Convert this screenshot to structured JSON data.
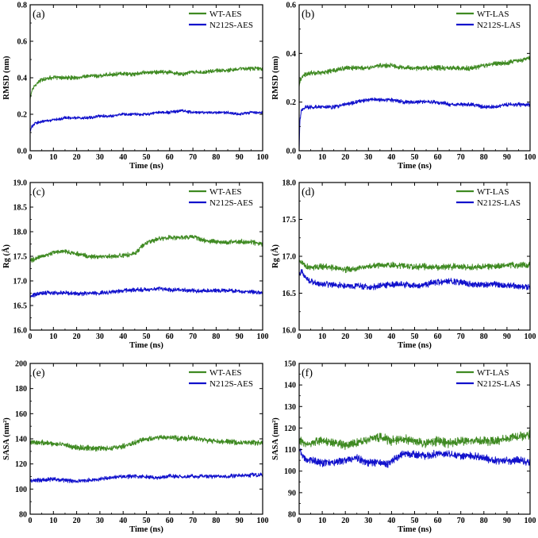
{
  "figure": {
    "series_names": [
      "WT",
      "N212S"
    ],
    "colors": {
      "WT": "#3f8a22",
      "N212S": "#1111cc"
    }
  },
  "chart_data": [
    {
      "type": "line",
      "panel": "(a)",
      "xlabel": "Time (ns)",
      "ylabel": "RMSD (nm)",
      "xlim": [
        0,
        100
      ],
      "ylim": [
        0.0,
        0.8
      ],
      "xticks": [
        0,
        10,
        20,
        30,
        40,
        50,
        60,
        70,
        80,
        90,
        100
      ],
      "yticks": [
        0.0,
        0.2,
        0.4,
        0.6,
        0.8
      ],
      "ytick_labels": [
        "0.0",
        "0.2",
        "0.4",
        "0.6",
        "0.8"
      ],
      "legend": "top-right",
      "series": [
        {
          "name": "WT-AES",
          "color": "#3f8a22",
          "noise": 0.008,
          "x": [
            0,
            0.5,
            2,
            5,
            8,
            10,
            15,
            20,
            25,
            30,
            35,
            40,
            45,
            50,
            55,
            60,
            65,
            70,
            75,
            80,
            85,
            90,
            95,
            100
          ],
          "y": [
            0.28,
            0.32,
            0.36,
            0.39,
            0.4,
            0.4,
            0.4,
            0.4,
            0.41,
            0.41,
            0.42,
            0.42,
            0.42,
            0.43,
            0.43,
            0.43,
            0.42,
            0.43,
            0.43,
            0.44,
            0.44,
            0.45,
            0.45,
            0.45
          ]
        },
        {
          "name": "N212S-AES",
          "color": "#1111cc",
          "noise": 0.006,
          "x": [
            0,
            0.5,
            2,
            5,
            10,
            15,
            20,
            25,
            30,
            35,
            40,
            45,
            50,
            55,
            60,
            65,
            70,
            75,
            80,
            85,
            90,
            95,
            100
          ],
          "y": [
            0.1,
            0.13,
            0.15,
            0.16,
            0.17,
            0.18,
            0.18,
            0.18,
            0.19,
            0.19,
            0.2,
            0.2,
            0.2,
            0.21,
            0.21,
            0.22,
            0.21,
            0.21,
            0.21,
            0.21,
            0.2,
            0.21,
            0.21
          ]
        }
      ]
    },
    {
      "type": "line",
      "panel": "(b)",
      "xlabel": "Time (ns)",
      "ylabel": "RMSD (nm)",
      "xlim": [
        0,
        100
      ],
      "ylim": [
        0.0,
        0.6
      ],
      "xticks": [
        0,
        10,
        20,
        30,
        40,
        50,
        60,
        70,
        80,
        90,
        100
      ],
      "yticks": [
        0.0,
        0.2,
        0.4,
        0.6
      ],
      "ytick_labels": [
        "0.0",
        "0.2",
        "0.4",
        "0.6"
      ],
      "legend": "top-right",
      "series": [
        {
          "name": "WT-LAS",
          "color": "#3f8a22",
          "noise": 0.007,
          "x": [
            0,
            0.5,
            2,
            5,
            10,
            15,
            20,
            25,
            30,
            35,
            40,
            45,
            50,
            55,
            60,
            65,
            70,
            75,
            80,
            85,
            90,
            95,
            100
          ],
          "y": [
            0.27,
            0.29,
            0.31,
            0.32,
            0.32,
            0.33,
            0.34,
            0.34,
            0.34,
            0.35,
            0.35,
            0.34,
            0.34,
            0.34,
            0.34,
            0.34,
            0.34,
            0.34,
            0.35,
            0.36,
            0.36,
            0.37,
            0.38
          ]
        },
        {
          "name": "N212S-LAS",
          "color": "#1111cc",
          "noise": 0.006,
          "x": [
            0,
            0.3,
            1,
            3,
            5,
            10,
            15,
            20,
            25,
            30,
            35,
            40,
            45,
            50,
            55,
            60,
            65,
            70,
            75,
            80,
            85,
            90,
            95,
            100
          ],
          "y": [
            0.0,
            0.12,
            0.17,
            0.18,
            0.18,
            0.18,
            0.18,
            0.19,
            0.2,
            0.21,
            0.21,
            0.21,
            0.2,
            0.2,
            0.2,
            0.2,
            0.19,
            0.19,
            0.19,
            0.18,
            0.18,
            0.19,
            0.19,
            0.19
          ]
        }
      ]
    },
    {
      "type": "line",
      "panel": "(c)",
      "xlabel": "Time (ns)",
      "ylabel": "Rg (Å)",
      "xlim": [
        0,
        100
      ],
      "ylim": [
        16.0,
        19.0
      ],
      "xticks": [
        0,
        10,
        20,
        30,
        40,
        50,
        60,
        70,
        80,
        90,
        100
      ],
      "yticks": [
        16.0,
        16.5,
        17.0,
        17.5,
        18.0,
        18.5,
        19.0
      ],
      "ytick_labels": [
        "16.0",
        "16.5",
        "17.0",
        "17.5",
        "18.0",
        "18.5",
        "19.0"
      ],
      "legend": "top-right",
      "series": [
        {
          "name": "WT-AES",
          "color": "#3f8a22",
          "noise": 0.035,
          "x": [
            0,
            2,
            5,
            10,
            15,
            20,
            25,
            30,
            35,
            40,
            45,
            48,
            50,
            55,
            60,
            65,
            70,
            75,
            80,
            85,
            90,
            95,
            100
          ],
          "y": [
            17.4,
            17.45,
            17.5,
            17.58,
            17.6,
            17.55,
            17.5,
            17.48,
            17.5,
            17.52,
            17.55,
            17.7,
            17.78,
            17.85,
            17.88,
            17.88,
            17.9,
            17.82,
            17.8,
            17.78,
            17.8,
            17.78,
            17.75
          ]
        },
        {
          "name": "N212S-AES",
          "color": "#1111cc",
          "noise": 0.03,
          "x": [
            0,
            2,
            5,
            10,
            15,
            20,
            25,
            30,
            35,
            40,
            45,
            50,
            55,
            60,
            65,
            70,
            75,
            80,
            85,
            90,
            95,
            100
          ],
          "y": [
            16.68,
            16.72,
            16.75,
            16.76,
            16.76,
            16.74,
            16.75,
            16.75,
            16.78,
            16.8,
            16.82,
            16.82,
            16.84,
            16.82,
            16.82,
            16.8,
            16.8,
            16.8,
            16.8,
            16.78,
            16.78,
            16.76
          ]
        }
      ]
    },
    {
      "type": "line",
      "panel": "(d)",
      "xlabel": "Time (ns)",
      "ylabel": "Rg (Å)",
      "xlim": [
        0,
        100
      ],
      "ylim": [
        16.0,
        18.0
      ],
      "xticks": [
        0,
        10,
        20,
        30,
        40,
        50,
        60,
        70,
        80,
        90,
        100
      ],
      "yticks": [
        16.0,
        16.5,
        17.0,
        17.5,
        18.0
      ],
      "ytick_labels": [
        "16.0",
        "16.5",
        "17.0",
        "17.5",
        "18.0"
      ],
      "legend": "top-right",
      "series": [
        {
          "name": "WT-LAS",
          "color": "#3f8a22",
          "noise": 0.03,
          "x": [
            0,
            2,
            5,
            10,
            15,
            20,
            25,
            30,
            35,
            40,
            45,
            50,
            55,
            60,
            65,
            70,
            75,
            80,
            85,
            90,
            95,
            100
          ],
          "y": [
            16.95,
            16.88,
            16.85,
            16.86,
            16.84,
            16.82,
            16.84,
            16.87,
            16.88,
            16.88,
            16.87,
            16.86,
            16.86,
            16.85,
            16.86,
            16.86,
            16.85,
            16.86,
            16.86,
            16.88,
            16.88,
            16.88
          ]
        },
        {
          "name": "N212S-LAS",
          "color": "#1111cc",
          "noise": 0.03,
          "x": [
            0,
            1,
            3,
            5,
            10,
            15,
            20,
            25,
            30,
            35,
            40,
            45,
            50,
            55,
            60,
            65,
            70,
            75,
            80,
            85,
            90,
            95,
            100
          ],
          "y": [
            16.75,
            16.8,
            16.7,
            16.65,
            16.62,
            16.62,
            16.6,
            16.6,
            16.58,
            16.6,
            16.62,
            16.62,
            16.6,
            16.62,
            16.65,
            16.66,
            16.65,
            16.62,
            16.62,
            16.62,
            16.6,
            16.6,
            16.58
          ]
        }
      ]
    },
    {
      "type": "line",
      "panel": "(e)",
      "xlabel": "Time (ns)",
      "ylabel": "SASA (nm²)",
      "xlim": [
        0,
        100
      ],
      "ylim": [
        80,
        200
      ],
      "xticks": [
        0,
        10,
        20,
        30,
        40,
        50,
        60,
        70,
        80,
        90,
        100
      ],
      "yticks": [
        80,
        100,
        120,
        140,
        160,
        180,
        200
      ],
      "ytick_labels": [
        "80",
        "100",
        "120",
        "140",
        "160",
        "180",
        "200"
      ],
      "legend": "top-right",
      "series": [
        {
          "name": "WT-AES",
          "color": "#3f8a22",
          "noise": 1.5,
          "x": [
            0,
            5,
            10,
            15,
            20,
            25,
            30,
            35,
            40,
            45,
            50,
            55,
            60,
            65,
            70,
            75,
            80,
            85,
            90,
            95,
            100
          ],
          "y": [
            137,
            137,
            136,
            135,
            133,
            133,
            132,
            133,
            134,
            137,
            140,
            141,
            141,
            140,
            141,
            139,
            138,
            138,
            137,
            137,
            137
          ]
        },
        {
          "name": "N212S-AES",
          "color": "#1111cc",
          "noise": 1.2,
          "x": [
            0,
            5,
            10,
            15,
            20,
            25,
            30,
            35,
            40,
            45,
            50,
            55,
            60,
            65,
            70,
            75,
            80,
            85,
            90,
            95,
            100
          ],
          "y": [
            107,
            107,
            108,
            107,
            106,
            107,
            108,
            109,
            110,
            110,
            110,
            109,
            110,
            110,
            110,
            110,
            110,
            110,
            111,
            111,
            111
          ]
        }
      ]
    },
    {
      "type": "line",
      "panel": "(f)",
      "xlabel": "Time (ns)",
      "ylabel": "SASA (nm²)",
      "xlim": [
        0,
        100
      ],
      "ylim": [
        80,
        150
      ],
      "xticks": [
        0,
        10,
        20,
        30,
        40,
        50,
        60,
        70,
        80,
        90,
        100
      ],
      "yticks": [
        80,
        90,
        100,
        110,
        120,
        130,
        140,
        150
      ],
      "ytick_labels": [
        "80",
        "90",
        "100",
        "110",
        "120",
        "130",
        "140",
        "150"
      ],
      "legend": "top-right",
      "series": [
        {
          "name": "WT-LAS",
          "color": "#3f8a22",
          "noise": 1.5,
          "x": [
            0,
            5,
            10,
            15,
            20,
            25,
            30,
            35,
            40,
            45,
            50,
            55,
            60,
            65,
            70,
            75,
            80,
            85,
            90,
            95,
            100
          ],
          "y": [
            114,
            113,
            114,
            113,
            112,
            113,
            115,
            116,
            114,
            115,
            114,
            113,
            114,
            113,
            114,
            114,
            114,
            114,
            115,
            116,
            117
          ]
        },
        {
          "name": "N212S-LAS",
          "color": "#1111cc",
          "noise": 1.3,
          "x": [
            0,
            2,
            5,
            10,
            15,
            20,
            25,
            30,
            35,
            38,
            40,
            45,
            50,
            55,
            60,
            65,
            70,
            75,
            80,
            85,
            90,
            95,
            100
          ],
          "y": [
            110,
            106,
            105,
            104,
            104,
            105,
            106,
            104,
            104,
            103,
            105,
            108,
            108,
            107,
            108,
            108,
            107,
            107,
            106,
            105,
            105,
            105,
            104
          ]
        }
      ]
    }
  ]
}
